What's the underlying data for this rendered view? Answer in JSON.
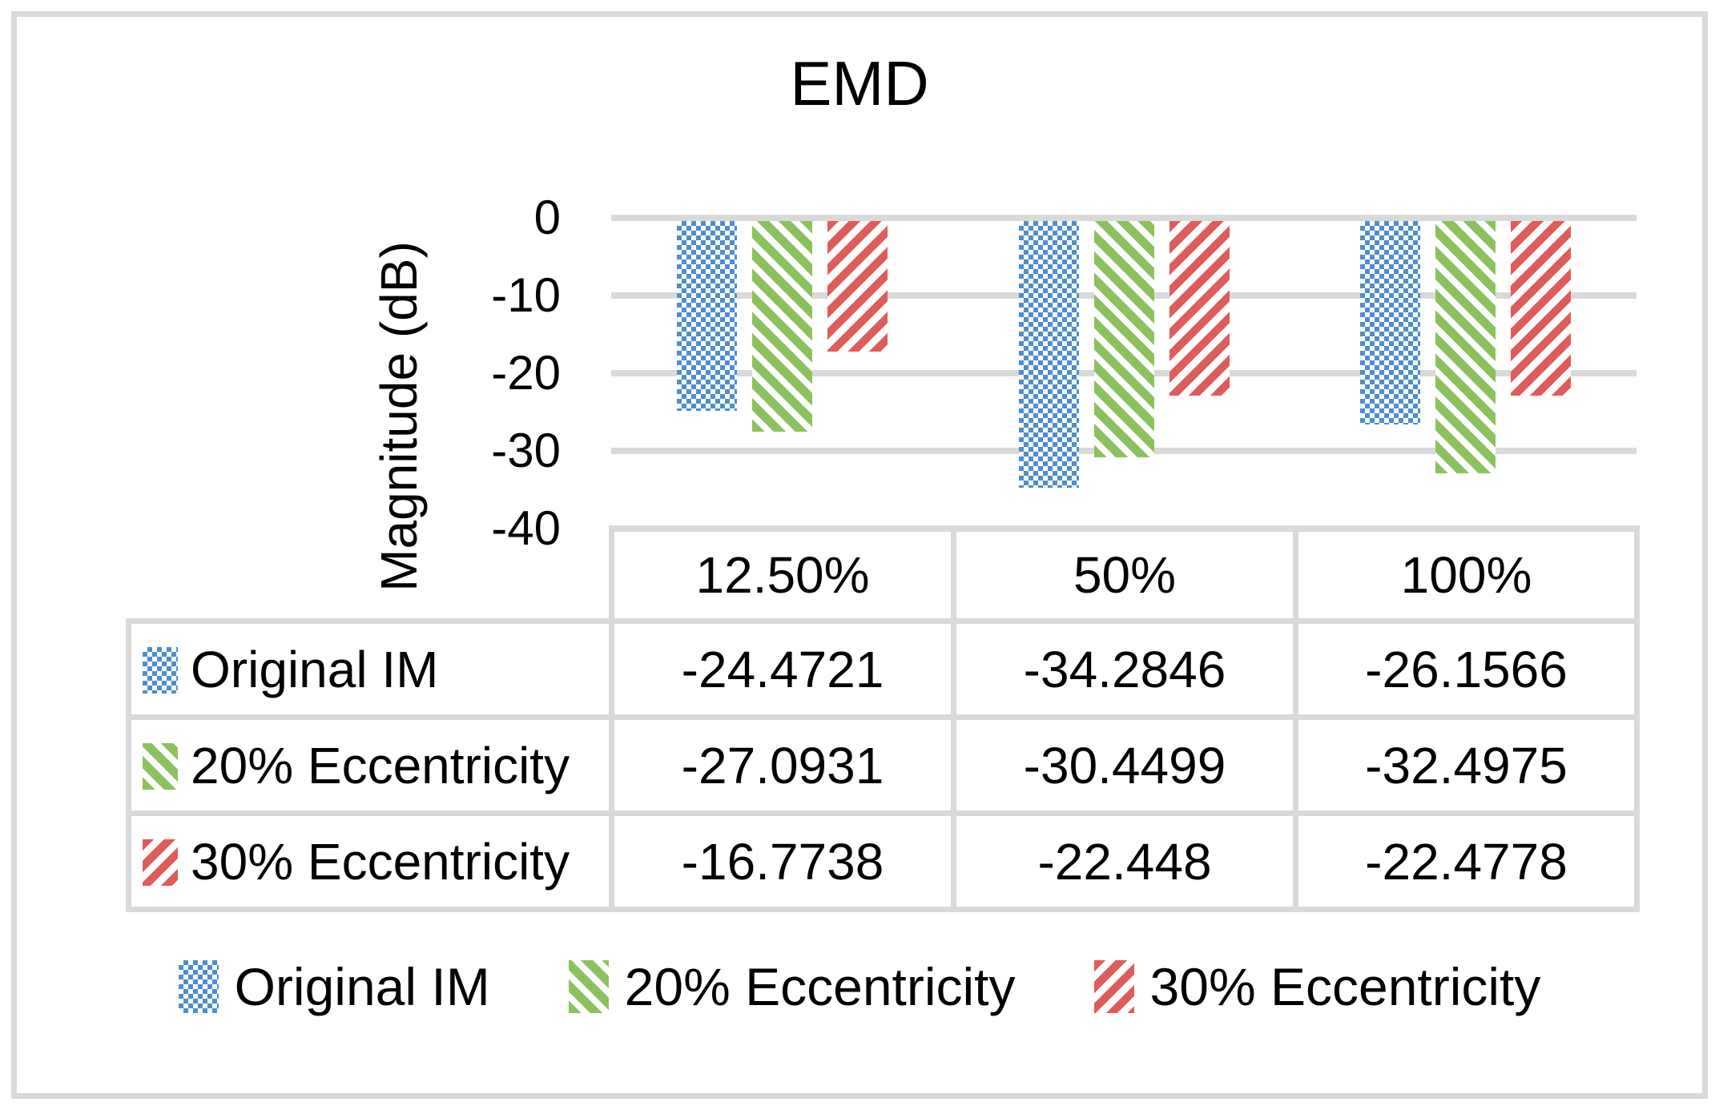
{
  "chart_data": {
    "type": "bar",
    "title": "EMD",
    "categories": [
      "12.50%",
      "50%",
      "100%"
    ],
    "series": [
      {
        "name": "Original IM",
        "values": [
          -24.4721,
          -34.2846,
          -26.1566
        ]
      },
      {
        "name": "20% Eccentricity",
        "values": [
          -27.0931,
          -30.4499,
          -32.4975
        ]
      },
      {
        "name": "30% Eccentricity",
        "values": [
          -16.7738,
          -22.448,
          -22.4778
        ]
      }
    ],
    "xlabel": "",
    "ylabel": "Magnitude (dB)",
    "ylim": [
      -40,
      0
    ],
    "yticks": [
      0,
      -10,
      -20,
      -30,
      -40
    ],
    "ytick_labels": [
      "0",
      "-10",
      "-20",
      "-30",
      "-40"
    ],
    "grid": true,
    "legend_position": "bottom",
    "has_data_table": true
  },
  "table": {
    "header": [
      "12.50%",
      "50%",
      "100%"
    ],
    "rows": [
      {
        "label": "Original IM",
        "cells": [
          "-24.4721",
          "-34.2846",
          "-26.1566"
        ]
      },
      {
        "label": "20% Eccentricity",
        "cells": [
          "-27.0931",
          "-30.4499",
          "-32.4975"
        ]
      },
      {
        "label": "30% Eccentricity",
        "cells": [
          "-16.7738",
          "-22.448",
          "-22.4778"
        ]
      }
    ]
  },
  "legend": {
    "items": [
      "Original IM",
      "20% Eccentricity",
      "30% Eccentricity"
    ]
  },
  "patterns": [
    "small-checker",
    "diagonal-down",
    "diagonal-up"
  ],
  "colors": {
    "series": [
      "#4E8ECD",
      "#8CC25E",
      "#DF5C5C"
    ],
    "gridline": "#D9D9D9",
    "table_border": "#D9D9D9",
    "frame_border": "#D9D9D9",
    "text": "#000000",
    "background": "#FFFFFF"
  }
}
